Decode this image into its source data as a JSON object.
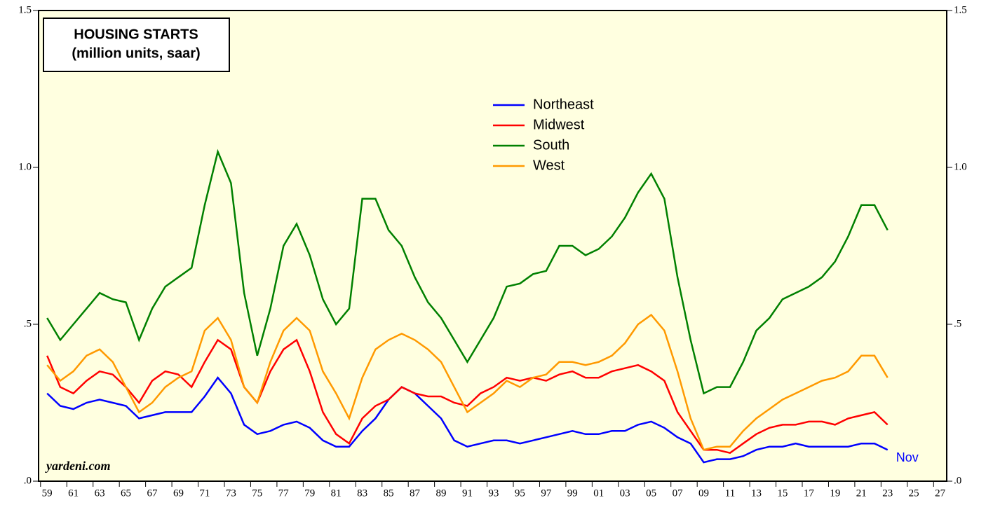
{
  "chart_data": {
    "type": "line",
    "title": "HOUSING STARTS",
    "subtitle": "(million units, saar)",
    "source": "yardeni.com",
    "annotation": "Nov",
    "x": [
      1959.5,
      1960.5,
      1961.5,
      1962.5,
      1963.5,
      1964.5,
      1965.5,
      1966.5,
      1967.5,
      1968.5,
      1969.5,
      1970.5,
      1971.5,
      1972.5,
      1973.5,
      1974.5,
      1975.5,
      1976.5,
      1977.5,
      1978.5,
      1979.5,
      1980.5,
      1981.5,
      1982.5,
      1983.5,
      1984.5,
      1985.5,
      1986.5,
      1987.5,
      1988.5,
      1989.5,
      1990.5,
      1991.5,
      1992.5,
      1993.5,
      1994.5,
      1995.5,
      1996.5,
      1997.5,
      1998.5,
      1999.5,
      2000.5,
      2001.5,
      2002.5,
      2003.5,
      2004.5,
      2005.5,
      2006.5,
      2007.5,
      2008.5,
      2009.5,
      2010.5,
      2011.5,
      2012.5,
      2013.5,
      2014.5,
      2015.5,
      2016.5,
      2017.5,
      2018.5,
      2019.5,
      2020.5,
      2021.5,
      2022.5,
      2023.5
    ],
    "series": [
      {
        "name": "Northeast",
        "color": "#0000ff",
        "values": [
          0.28,
          0.24,
          0.23,
          0.25,
          0.26,
          0.25,
          0.24,
          0.2,
          0.21,
          0.22,
          0.22,
          0.22,
          0.27,
          0.33,
          0.28,
          0.18,
          0.15,
          0.16,
          0.18,
          0.19,
          0.17,
          0.13,
          0.11,
          0.11,
          0.16,
          0.2,
          0.26,
          0.3,
          0.28,
          0.24,
          0.2,
          0.13,
          0.11,
          0.12,
          0.13,
          0.13,
          0.12,
          0.13,
          0.14,
          0.15,
          0.16,
          0.15,
          0.15,
          0.16,
          0.16,
          0.18,
          0.19,
          0.17,
          0.14,
          0.12,
          0.06,
          0.07,
          0.07,
          0.08,
          0.1,
          0.11,
          0.11,
          0.12,
          0.11,
          0.11,
          0.11,
          0.11,
          0.12,
          0.12,
          0.1
        ]
      },
      {
        "name": "Midwest",
        "color": "#ff0000",
        "values": [
          0.4,
          0.3,
          0.28,
          0.32,
          0.35,
          0.34,
          0.3,
          0.25,
          0.32,
          0.35,
          0.34,
          0.3,
          0.38,
          0.45,
          0.42,
          0.3,
          0.25,
          0.35,
          0.42,
          0.45,
          0.35,
          0.22,
          0.15,
          0.12,
          0.2,
          0.24,
          0.26,
          0.3,
          0.28,
          0.27,
          0.27,
          0.25,
          0.24,
          0.28,
          0.3,
          0.33,
          0.32,
          0.33,
          0.32,
          0.34,
          0.35,
          0.33,
          0.33,
          0.35,
          0.36,
          0.37,
          0.35,
          0.32,
          0.22,
          0.16,
          0.1,
          0.1,
          0.09,
          0.12,
          0.15,
          0.17,
          0.18,
          0.18,
          0.19,
          0.19,
          0.18,
          0.2,
          0.21,
          0.22,
          0.18
        ]
      },
      {
        "name": "South",
        "color": "#008000",
        "values": [
          0.52,
          0.45,
          0.5,
          0.55,
          0.6,
          0.58,
          0.57,
          0.45,
          0.55,
          0.62,
          0.65,
          0.68,
          0.88,
          1.05,
          0.95,
          0.6,
          0.4,
          0.55,
          0.75,
          0.82,
          0.72,
          0.58,
          0.5,
          0.55,
          0.9,
          0.9,
          0.8,
          0.75,
          0.65,
          0.57,
          0.52,
          0.45,
          0.38,
          0.45,
          0.52,
          0.62,
          0.63,
          0.66,
          0.67,
          0.75,
          0.75,
          0.72,
          0.74,
          0.78,
          0.84,
          0.92,
          0.98,
          0.9,
          0.65,
          0.45,
          0.28,
          0.3,
          0.3,
          0.38,
          0.48,
          0.52,
          0.58,
          0.6,
          0.62,
          0.65,
          0.7,
          0.78,
          0.88,
          0.88,
          0.8
        ]
      },
      {
        "name": "West",
        "color": "#ff9900",
        "values": [
          0.37,
          0.32,
          0.35,
          0.4,
          0.42,
          0.38,
          0.3,
          0.22,
          0.25,
          0.3,
          0.33,
          0.35,
          0.48,
          0.52,
          0.45,
          0.3,
          0.25,
          0.38,
          0.48,
          0.52,
          0.48,
          0.35,
          0.28,
          0.2,
          0.33,
          0.42,
          0.45,
          0.47,
          0.45,
          0.42,
          0.38,
          0.3,
          0.22,
          0.25,
          0.28,
          0.32,
          0.3,
          0.33,
          0.34,
          0.38,
          0.38,
          0.37,
          0.38,
          0.4,
          0.44,
          0.5,
          0.53,
          0.48,
          0.35,
          0.2,
          0.1,
          0.11,
          0.11,
          0.16,
          0.2,
          0.23,
          0.26,
          0.28,
          0.3,
          0.32,
          0.33,
          0.35,
          0.4,
          0.4,
          0.33
        ]
      }
    ],
    "xlim": [
      1958.85,
      2028
    ],
    "xticks": [
      {
        "value": 1959,
        "label": "59"
      },
      {
        "value": 1961,
        "label": "61"
      },
      {
        "value": 1963,
        "label": "63"
      },
      {
        "value": 1965,
        "label": "65"
      },
      {
        "value": 1967,
        "label": "67"
      },
      {
        "value": 1969,
        "label": "69"
      },
      {
        "value": 1971,
        "label": "71"
      },
      {
        "value": 1973,
        "label": "73"
      },
      {
        "value": 1975,
        "label": "75"
      },
      {
        "value": 1977,
        "label": "77"
      },
      {
        "value": 1979,
        "label": "79"
      },
      {
        "value": 1981,
        "label": "81"
      },
      {
        "value": 1983,
        "label": "83"
      },
      {
        "value": 1985,
        "label": "85"
      },
      {
        "value": 1987,
        "label": "87"
      },
      {
        "value": 1989,
        "label": "89"
      },
      {
        "value": 1991,
        "label": "91"
      },
      {
        "value": 1993,
        "label": "93"
      },
      {
        "value": 1995,
        "label": "95"
      },
      {
        "value": 1997,
        "label": "97"
      },
      {
        "value": 1999,
        "label": "99"
      },
      {
        "value": 2001,
        "label": "01"
      },
      {
        "value": 2003,
        "label": "03"
      },
      {
        "value": 2005,
        "label": "05"
      },
      {
        "value": 2007,
        "label": "07"
      },
      {
        "value": 2009,
        "label": "09"
      },
      {
        "value": 2011,
        "label": "11"
      },
      {
        "value": 2013,
        "label": "13"
      },
      {
        "value": 2015,
        "label": "15"
      },
      {
        "value": 2017,
        "label": "17"
      },
      {
        "value": 2019,
        "label": "19"
      },
      {
        "value": 2021,
        "label": "21"
      },
      {
        "value": 2023,
        "label": "23"
      },
      {
        "value": 2025,
        "label": "25"
      },
      {
        "value": 2027,
        "label": "27"
      }
    ],
    "ylim": [
      0,
      1.5
    ],
    "yticks": [
      {
        "value": 0,
        "label": ".0"
      },
      {
        "value": 0.5,
        "label": ".5"
      },
      {
        "value": 1.0,
        "label": "1.0"
      },
      {
        "value": 1.5,
        "label": "1.5"
      }
    ],
    "grid": false,
    "legend": "top-center"
  }
}
